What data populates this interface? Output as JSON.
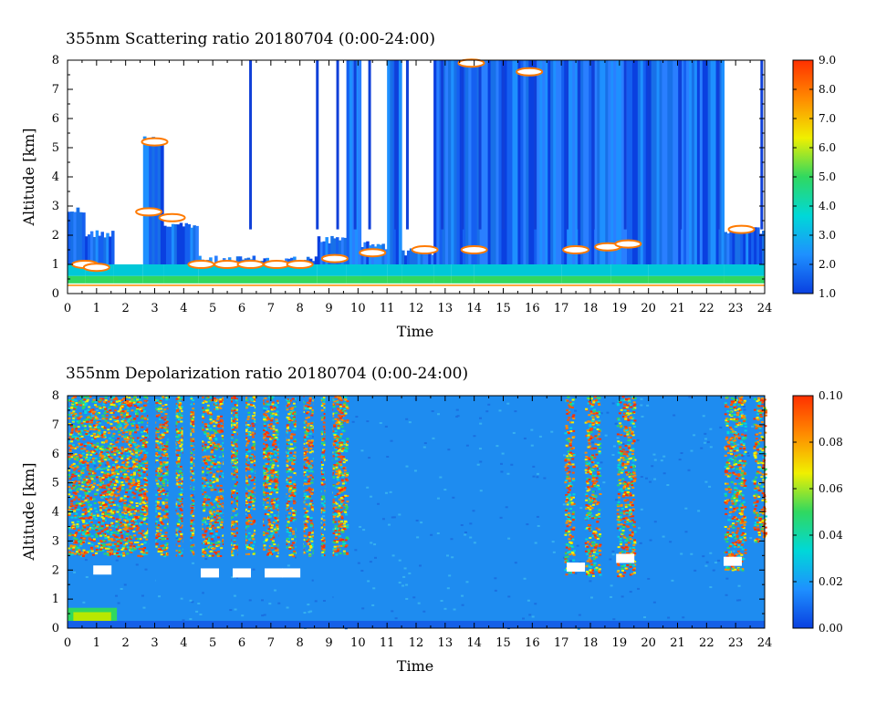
{
  "chart_data": [
    {
      "type": "heatmap",
      "title": "355nm Scattering ratio  20180704 (0:00-24:00)",
      "xlabel": "Time",
      "ylabel": "Altitude [km]",
      "xlim": [
        0,
        24
      ],
      "ylim": [
        0,
        8
      ],
      "x_ticks": [
        "0",
        "1",
        "2",
        "3",
        "4",
        "5",
        "6",
        "7",
        "8",
        "9",
        "10",
        "11",
        "12",
        "13",
        "14",
        "15",
        "16",
        "17",
        "18",
        "19",
        "20",
        "21",
        "22",
        "23",
        "24"
      ],
      "y_ticks": [
        "0",
        "1",
        "2",
        "3",
        "4",
        "5",
        "6",
        "7",
        "8"
      ],
      "colorbar": {
        "range": [
          1.0,
          9.0
        ],
        "ticks": [
          "1.0",
          "2.0",
          "3.0",
          "4.0",
          "5.0",
          "6.0",
          "7.0",
          "8.0",
          "9.0"
        ],
        "colors": [
          "#0a40e0",
          "#1e90ff",
          "#00d8d8",
          "#30d860",
          "#f0f000",
          "#ff8c00",
          "#ff3000"
        ]
      },
      "column_segments": [
        {
          "t0": 0.0,
          "t1": 0.6,
          "top_km": 3.0
        },
        {
          "t0": 0.6,
          "t1": 1.6,
          "top_km": 2.2
        },
        {
          "t0": 1.6,
          "t1": 2.6,
          "top_km": 0.9
        },
        {
          "t0": 2.6,
          "t1": 3.3,
          "top_km": 5.5
        },
        {
          "t0": 3.3,
          "t1": 4.5,
          "top_km": 2.5
        },
        {
          "t0": 4.5,
          "t1": 8.6,
          "top_km": 1.3
        },
        {
          "t0": 8.6,
          "t1": 9.6,
          "top_km": 2.0
        },
        {
          "t0": 9.6,
          "t1": 10.1,
          "top_km": 8.0
        },
        {
          "t0": 10.1,
          "t1": 11.0,
          "top_km": 1.8
        },
        {
          "t0": 11.0,
          "t1": 11.5,
          "top_km": 8.0
        },
        {
          "t0": 11.5,
          "t1": 12.6,
          "top_km": 1.6
        },
        {
          "t0": 12.6,
          "t1": 13.2,
          "top_km": 8.0
        },
        {
          "t0": 13.2,
          "t1": 14.0,
          "top_km": 8.0
        },
        {
          "t0": 14.0,
          "t1": 17.0,
          "top_km": 8.0
        },
        {
          "t0": 17.0,
          "t1": 18.7,
          "top_km": 8.0
        },
        {
          "t0": 18.7,
          "t1": 20.0,
          "top_km": 8.0
        },
        {
          "t0": 20.0,
          "t1": 22.6,
          "top_km": 8.0
        },
        {
          "t0": 22.6,
          "t1": 24.0,
          "top_km": 2.3
        }
      ],
      "thin_columns": [
        6.3,
        8.6,
        9.3,
        9.9,
        10.4,
        11.3,
        11.7,
        12.9,
        13.6,
        14.2,
        15.0,
        16.1,
        17.2,
        17.6,
        18.1,
        19.2,
        20.0,
        21.1,
        22.4,
        23.9
      ]
    },
    {
      "type": "heatmap",
      "title": "355nm Depolarization ratio  20180704 (0:00-24:00)",
      "xlabel": "Time",
      "ylabel": "Altitude [km]",
      "xlim": [
        0,
        24
      ],
      "ylim": [
        0,
        8
      ],
      "x_ticks": [
        "0",
        "1",
        "2",
        "3",
        "4",
        "5",
        "6",
        "7",
        "8",
        "9",
        "10",
        "11",
        "12",
        "13",
        "14",
        "15",
        "16",
        "17",
        "18",
        "19",
        "20",
        "21",
        "22",
        "23",
        "24"
      ],
      "y_ticks": [
        "0",
        "1",
        "2",
        "3",
        "4",
        "5",
        "6",
        "7",
        "8"
      ],
      "colorbar": {
        "range": [
          0.0,
          0.1
        ],
        "ticks": [
          "0.00",
          "0.02",
          "0.04",
          "0.06",
          "0.08",
          "0.10"
        ],
        "colors": [
          "#0a40e0",
          "#1e90ff",
          "#00d8d8",
          "#30d860",
          "#f0f000",
          "#ff8c00",
          "#ff3000"
        ]
      },
      "noisy_regions": [
        {
          "t0": 0.0,
          "t1": 9.6,
          "bottom_km": 2.5
        },
        {
          "t0": 17.1,
          "t1": 17.4,
          "bottom_km": 1.8
        },
        {
          "t0": 17.8,
          "t1": 18.3,
          "bottom_km": 1.8
        },
        {
          "t0": 18.9,
          "t1": 19.5,
          "bottom_km": 1.8
        },
        {
          "t0": 22.6,
          "t1": 23.3,
          "bottom_km": 2.0
        },
        {
          "t0": 23.6,
          "t1": 24.0,
          "bottom_km": 3.0
        }
      ],
      "quiet_columns": [
        2.9,
        3.6,
        4.1,
        4.5,
        5.5,
        6.0,
        6.6,
        7.4,
        8.0,
        8.6,
        9.0
      ]
    }
  ]
}
